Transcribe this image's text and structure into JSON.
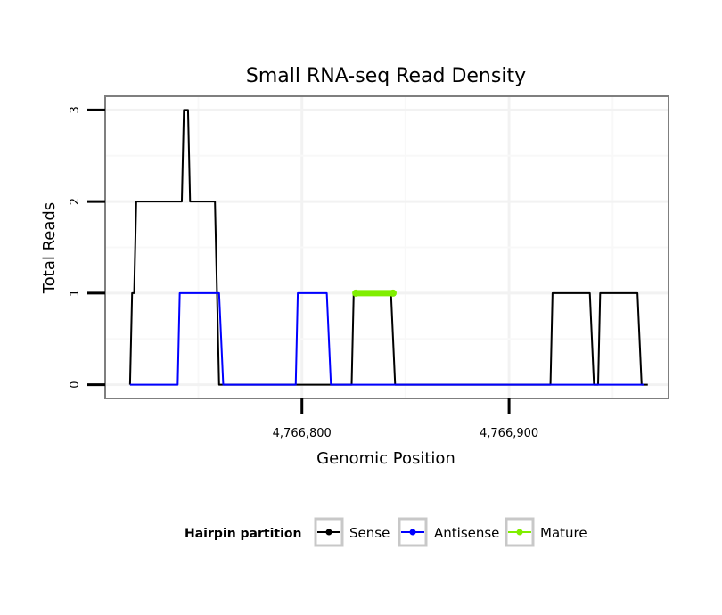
{
  "chart_data": {
    "type": "line",
    "title": "Small RNA-seq Read Density",
    "xlabel": "Genomic Position",
    "ylabel": "Total Reads",
    "xlim": [
      4766705,
      4766977
    ],
    "ylim": [
      -0.15,
      3.15
    ],
    "xticks": [
      4766800,
      4766900
    ],
    "xtick_labels": [
      "4,766,800",
      "4,766,900"
    ],
    "yticks": [
      0,
      1,
      2,
      3
    ],
    "ytick_labels": [
      "0",
      "1",
      "2",
      "3"
    ],
    "grid": true,
    "legend": {
      "title": "Hairpin partition",
      "position": "bottom",
      "entries": [
        "Sense",
        "Antisense",
        "Mature"
      ]
    },
    "series": [
      {
        "name": "Sense",
        "color": "#000000",
        "x": [
          4766717,
          4766718,
          4766719,
          4766720,
          4766721,
          4766742,
          4766743,
          4766745,
          4766746,
          4766758,
          4766760,
          4766824,
          4766825,
          4766843,
          4766845,
          4766920,
          4766921,
          4766939,
          4766941,
          4766943,
          4766944,
          4766962,
          4766964,
          4766967
        ],
        "y": [
          0,
          1,
          1,
          2,
          2,
          2,
          3,
          3,
          2,
          2,
          0,
          0,
          1,
          1,
          0,
          0,
          1,
          1,
          0,
          0,
          1,
          1,
          0,
          0
        ]
      },
      {
        "name": "Antisense",
        "color": "#0000ff",
        "x": [
          4766717,
          4766740,
          4766741,
          4766760,
          4766762,
          4766797,
          4766798,
          4766812,
          4766814,
          4766965
        ],
        "y": [
          0,
          0,
          1,
          1,
          0,
          0,
          1,
          1,
          0,
          0
        ]
      },
      {
        "name": "Mature",
        "color": "#80ee00",
        "x": [
          4766826,
          4766844
        ],
        "y": [
          1,
          1
        ]
      }
    ]
  }
}
